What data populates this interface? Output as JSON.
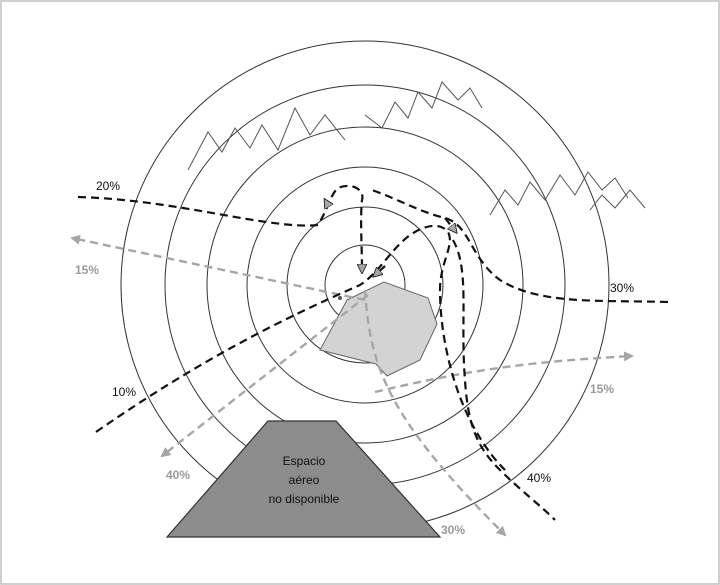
{
  "diagram": {
    "rings": 6,
    "colors": {
      "border": "#bfbfbf",
      "ring": "#333333",
      "dark_route": "#111111",
      "grey_route": "#a6a6a6",
      "airport": "#d3d3d3",
      "restricted_zone": "#8c8c8c"
    },
    "dark_route_labels": {
      "r20": "20%",
      "r30": "30%",
      "r10": "10%",
      "r40": "40%"
    },
    "grey_route_labels": {
      "g15_left": "15%",
      "g15_right": "15%",
      "g40": "40%",
      "g30": "30%"
    },
    "restricted_zone": {
      "line1": "Espacio",
      "line2": "aéreo",
      "line3": "no disponible"
    },
    "icons": {
      "terrain": "mountains-icon",
      "airport": "airport-area-icon"
    }
  }
}
